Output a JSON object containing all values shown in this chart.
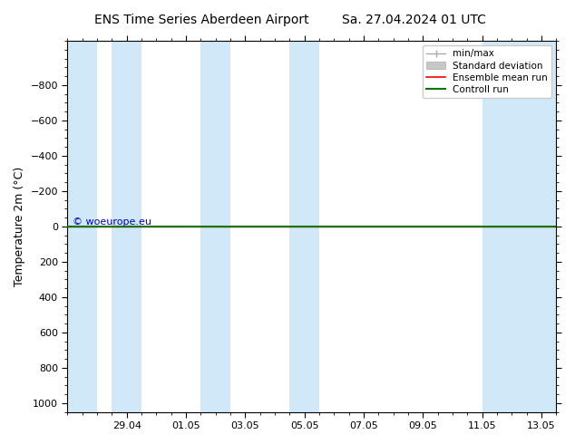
{
  "title": "ENS Time Series Aberdeen Airport",
  "title2": "Sa. 27.04.2024 01 UTC",
  "ylabel": "Temperature 2m (°C)",
  "ylim_top": -1050,
  "ylim_bottom": 1050,
  "yticks": [
    -800,
    -600,
    -400,
    -200,
    0,
    200,
    400,
    600,
    800,
    1000
  ],
  "xtick_labels": [
    "29.04",
    "01.05",
    "03.05",
    "05.05",
    "07.05",
    "09.05",
    "11.05",
    "13.05"
  ],
  "xtick_positions": [
    2,
    4,
    6,
    8,
    10,
    12,
    14,
    16
  ],
  "xlim": [
    0,
    16.5
  ],
  "shaded_blocks": [
    [
      0,
      1
    ],
    [
      1.5,
      2.5
    ],
    [
      4.5,
      5.5
    ],
    [
      7.5,
      8.5
    ],
    [
      14,
      16.5
    ]
  ],
  "shaded_color": "#d0e8f8",
  "bg_color": "#ffffff",
  "ensemble_mean_color": "#ff0000",
  "control_run_color": "#007700",
  "minmax_line_color": "#aaccee",
  "stddev_color": "#c0d8ee",
  "watermark": "© woeurope.eu",
  "watermark_color": "#0000cc",
  "legend_labels": [
    "min/max",
    "Standard deviation",
    "Ensemble mean run",
    "Controll run"
  ],
  "title_fontsize": 10,
  "axis_fontsize": 9,
  "tick_fontsize": 8,
  "num_days": 16.5
}
